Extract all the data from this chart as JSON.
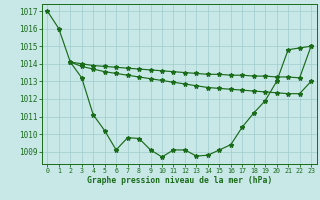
{
  "xlabel": "Graphe pression niveau de la mer (hPa)",
  "background_color": "#c8e8e8",
  "grid_color": "#a0cccc",
  "line_color": "#1a6b1a",
  "ylim": [
    1008.3,
    1017.4
  ],
  "xlim": [
    -0.5,
    23.5
  ],
  "yticks": [
    1009,
    1010,
    1011,
    1012,
    1013,
    1014,
    1015,
    1016,
    1017
  ],
  "xticks": [
    0,
    1,
    2,
    3,
    4,
    5,
    6,
    7,
    8,
    9,
    10,
    11,
    12,
    13,
    14,
    15,
    16,
    17,
    18,
    19,
    20,
    21,
    22,
    23
  ],
  "series1_x": [
    0,
    1,
    2,
    3,
    4,
    5,
    6,
    7,
    8,
    9,
    10,
    11,
    12,
    13,
    14,
    15,
    16,
    17,
    18,
    19,
    20,
    21,
    22,
    23
  ],
  "series1_y": [
    1017.0,
    1016.0,
    1014.1,
    1013.2,
    1011.1,
    1010.2,
    1009.1,
    1009.8,
    1009.75,
    1009.1,
    1008.7,
    1009.1,
    1009.1,
    1008.75,
    1008.8,
    1009.1,
    1009.4,
    1010.4,
    1011.2,
    1011.9,
    1013.0,
    1014.8,
    1014.9,
    1015.0
  ],
  "series2_x": [
    2,
    3,
    4,
    5,
    6,
    7,
    8,
    9,
    10,
    11,
    12,
    13,
    14,
    15,
    16,
    17,
    18,
    19,
    20,
    21,
    22,
    23
  ],
  "series2_y": [
    1014.1,
    1013.85,
    1013.7,
    1013.55,
    1013.45,
    1013.35,
    1013.25,
    1013.15,
    1013.05,
    1012.95,
    1012.85,
    1012.75,
    1012.65,
    1012.6,
    1012.55,
    1012.5,
    1012.45,
    1012.4,
    1012.35,
    1012.3,
    1012.3,
    1013.0
  ],
  "series3_x": [
    2,
    3,
    4,
    5,
    6,
    7,
    8,
    9,
    10,
    11,
    12,
    13,
    14,
    15,
    16,
    17,
    18,
    19,
    20,
    21,
    22,
    23
  ],
  "series3_y": [
    1014.1,
    1014.0,
    1013.9,
    1013.85,
    1013.8,
    1013.75,
    1013.7,
    1013.65,
    1013.6,
    1013.55,
    1013.5,
    1013.45,
    1013.4,
    1013.4,
    1013.35,
    1013.35,
    1013.3,
    1013.3,
    1013.25,
    1013.25,
    1013.2,
    1015.0
  ]
}
